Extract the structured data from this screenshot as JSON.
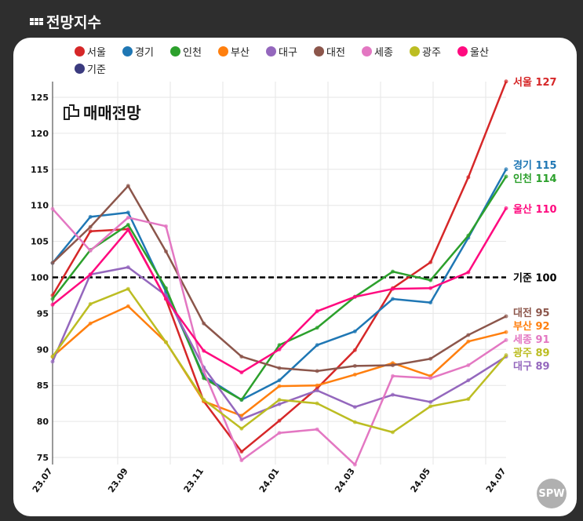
{
  "header": {
    "title": "전망지수",
    "icon": "grid-icon"
  },
  "watermark": {
    "brand": "매매전망",
    "logo": "SPW"
  },
  "chart_data": {
    "type": "line",
    "title": "전망지수",
    "x": [
      "23.07",
      "23.08",
      "23.09",
      "23.10",
      "23.11",
      "23.12",
      "24.01",
      "24.02",
      "24.03",
      "24.04",
      "24.05",
      "24.06",
      "24.07"
    ],
    "xticks": [
      "23.07",
      "23.09",
      "23.11",
      "24.01",
      "24.03",
      "24.05",
      "24.07"
    ],
    "yticks": [
      75,
      80,
      85,
      90,
      95,
      100,
      105,
      110,
      115,
      120,
      125
    ],
    "ylim": [
      74,
      127
    ],
    "legend_position": "top",
    "grid": true,
    "baseline": {
      "name": "기준",
      "value": 100,
      "color": "#000000",
      "end_label": "기준 100"
    },
    "series": [
      {
        "name": "서울",
        "color": "#d62728",
        "end_label": "서울 127",
        "values": [
          97.5,
          106.4,
          106.7,
          97,
          82.8,
          75.8,
          80.1,
          84.6,
          89.9,
          98.5,
          102.1,
          113.9,
          127.2
        ]
      },
      {
        "name": "경기",
        "color": "#1f77b4",
        "end_label": "경기 115",
        "values": [
          102,
          108.4,
          109,
          98,
          86.3,
          83,
          85.7,
          90.6,
          92.5,
          97,
          96.5,
          105.5,
          115
        ]
      },
      {
        "name": "인천",
        "color": "#2ca02c",
        "end_label": "인천 114",
        "values": [
          97,
          103.8,
          107.3,
          98.5,
          86,
          83,
          90.6,
          93,
          97.3,
          100.8,
          99.6,
          105.8,
          114
        ]
      },
      {
        "name": "부산",
        "color": "#ff7f0e",
        "end_label": "부산 92",
        "values": [
          89,
          93.6,
          96,
          91,
          82.8,
          80.8,
          84.9,
          85,
          86.5,
          88.1,
          86.3,
          91.1,
          92.4
        ]
      },
      {
        "name": "대구",
        "color": "#9467bd",
        "end_label": "대구 89",
        "values": [
          88.3,
          100.4,
          101.4,
          97.5,
          87.5,
          80.3,
          82.4,
          84.3,
          82,
          83.7,
          82.7,
          85.7,
          89
        ]
      },
      {
        "name": "대전",
        "color": "#8c564b",
        "end_label": "대전 95",
        "values": [
          102,
          107,
          112.7,
          103.6,
          93.6,
          89,
          87.4,
          87,
          87.7,
          87.8,
          88.7,
          92,
          94.6
        ]
      },
      {
        "name": "세종",
        "color": "#e377c2",
        "end_label": "세종 91",
        "values": [
          109.5,
          103.7,
          108.3,
          107.1,
          87,
          74.6,
          78.4,
          78.9,
          74,
          86.3,
          86,
          87.8,
          91.3
        ]
      },
      {
        "name": "광주",
        "color": "#bcbd22",
        "end_label": "광주 89",
        "values": [
          89,
          96.3,
          98.4,
          91,
          83,
          79,
          83,
          82.5,
          79.9,
          78.5,
          82.1,
          83.1,
          89.2
        ]
      },
      {
        "name": "울산",
        "color": "#ff0a7f",
        "end_label": "울산 110",
        "values": [
          96.2,
          100.4,
          106.6,
          97,
          89.8,
          86.8,
          90,
          95.3,
          97.3,
          98.4,
          98.5,
          100.7,
          109.6
        ]
      }
    ],
    "legend_extra": {
      "name": "기준",
      "color": "#3b3b7f"
    }
  }
}
